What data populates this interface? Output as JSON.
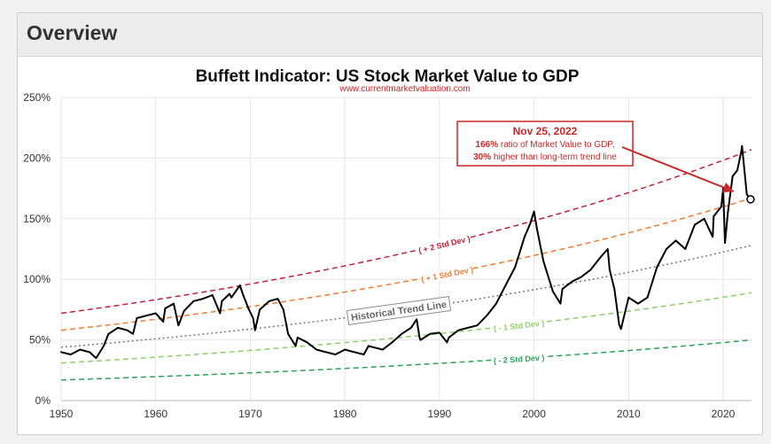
{
  "panel": {
    "title": "Overview"
  },
  "chart_data": {
    "type": "line",
    "title": "Buffett Indicator: US Stock Market Value to GDP",
    "subtitle": "www.currentmarketvaluation.com",
    "xlabel": "",
    "ylabel": "",
    "xlim": [
      1950,
      2023
    ],
    "ylim": [
      0,
      250
    ],
    "x_ticks": [
      1950,
      1960,
      1970,
      1980,
      1990,
      2000,
      2010,
      2020
    ],
    "y_ticks": [
      0,
      50,
      100,
      150,
      200,
      250
    ],
    "y_tick_labels": [
      "0%",
      "50%",
      "100%",
      "150%",
      "200%",
      "250%"
    ],
    "grid": true,
    "colors": {
      "series": "#000000",
      "plus2": "#c0203a",
      "plus1": "#ef7d33",
      "trend": "#777777",
      "minus1": "#8ecf6a",
      "minus2": "#2aa35a",
      "annotation": "#c62828"
    },
    "series": [
      {
        "name": "",
        "x": [
          1950,
          1951,
          1952,
          1953,
          1953.7,
          1954.5,
          1955,
          1956,
          1957,
          1957.6,
          1958,
          1959,
          1960,
          1960.8,
          1961,
          1961.9,
          1962.4,
          1963,
          1964,
          1965,
          1966,
          1966.8,
          1967,
          1967.8,
          1968,
          1968.9,
          1969.2,
          1969.8,
          1970.3,
          1970.5,
          1971,
          1972,
          1972.9,
          1973.5,
          1974,
          1974.8,
          1975,
          1976,
          1977,
          1978,
          1979,
          1980,
          1981,
          1982,
          1982.5,
          1983,
          1984,
          1985,
          1986,
          1987,
          1987.6,
          1987.9,
          1988,
          1989,
          1990,
          1990.8,
          1991,
          1992,
          1993,
          1994,
          1995,
          1996,
          1997,
          1998,
          1999,
          1999.6,
          2000,
          2000.3,
          2001,
          2002,
          2002.8,
          2003,
          2004,
          2005,
          2006,
          2007,
          2007.8,
          2008,
          2008.5,
          2009,
          2009.2,
          2010,
          2011,
          2012,
          2013,
          2014,
          2015,
          2016,
          2017,
          2018,
          2018.9,
          2019,
          2019.8,
          2020,
          2020.2,
          2020.5,
          2021,
          2021.5,
          2021.9,
          2022,
          2022.5,
          2022.9
        ],
        "y": [
          40,
          38,
          42,
          40,
          35,
          45,
          55,
          60,
          58,
          55,
          68,
          70,
          72,
          65,
          76,
          80,
          62,
          74,
          82,
          84,
          87,
          72,
          82,
          88,
          85,
          95,
          88,
          76,
          68,
          58,
          75,
          82,
          84,
          75,
          55,
          45,
          52,
          48,
          42,
          40,
          38,
          42,
          40,
          38,
          45,
          44,
          42,
          48,
          55,
          60,
          67,
          52,
          50,
          55,
          56,
          48,
          52,
          58,
          60,
          62,
          70,
          80,
          95,
          110,
          135,
          146,
          156,
          142,
          115,
          90,
          80,
          92,
          98,
          102,
          108,
          118,
          125,
          108,
          92,
          63,
          59,
          85,
          80,
          85,
          110,
          125,
          132,
          125,
          145,
          150,
          135,
          152,
          160,
          175,
          130,
          155,
          185,
          190,
          205,
          210,
          170,
          166
        ],
        "line_width": 2
      }
    ],
    "bands": [
      {
        "name": "+ 2 Std Dev",
        "label": "( + 2 Std Dev )",
        "start": 72,
        "end": 207
      },
      {
        "name": "+ 1 Std Dev",
        "label": "( + 1 Std Dev )",
        "start": 58,
        "end": 167
      },
      {
        "name": "Historical Trend Line",
        "label": "Historical Trend Line",
        "start": 44,
        "end": 128
      },
      {
        "name": "- 1 Std Dev",
        "label": "( - 1 Std Dev )",
        "start": 31,
        "end": 89
      },
      {
        "name": "- 2 Std Dev",
        "label": "( - 2 Std Dev )",
        "start": 17,
        "end": 50
      }
    ],
    "annotation": {
      "title": "Nov 25, 2022",
      "line1_bold": "166%",
      "line1_rest": " ratio of Market Value to GDP,",
      "line2_bold": "30%",
      "line2_rest": " higher than long-term trend line",
      "point_x": 2022.9,
      "point_y": 166
    }
  }
}
